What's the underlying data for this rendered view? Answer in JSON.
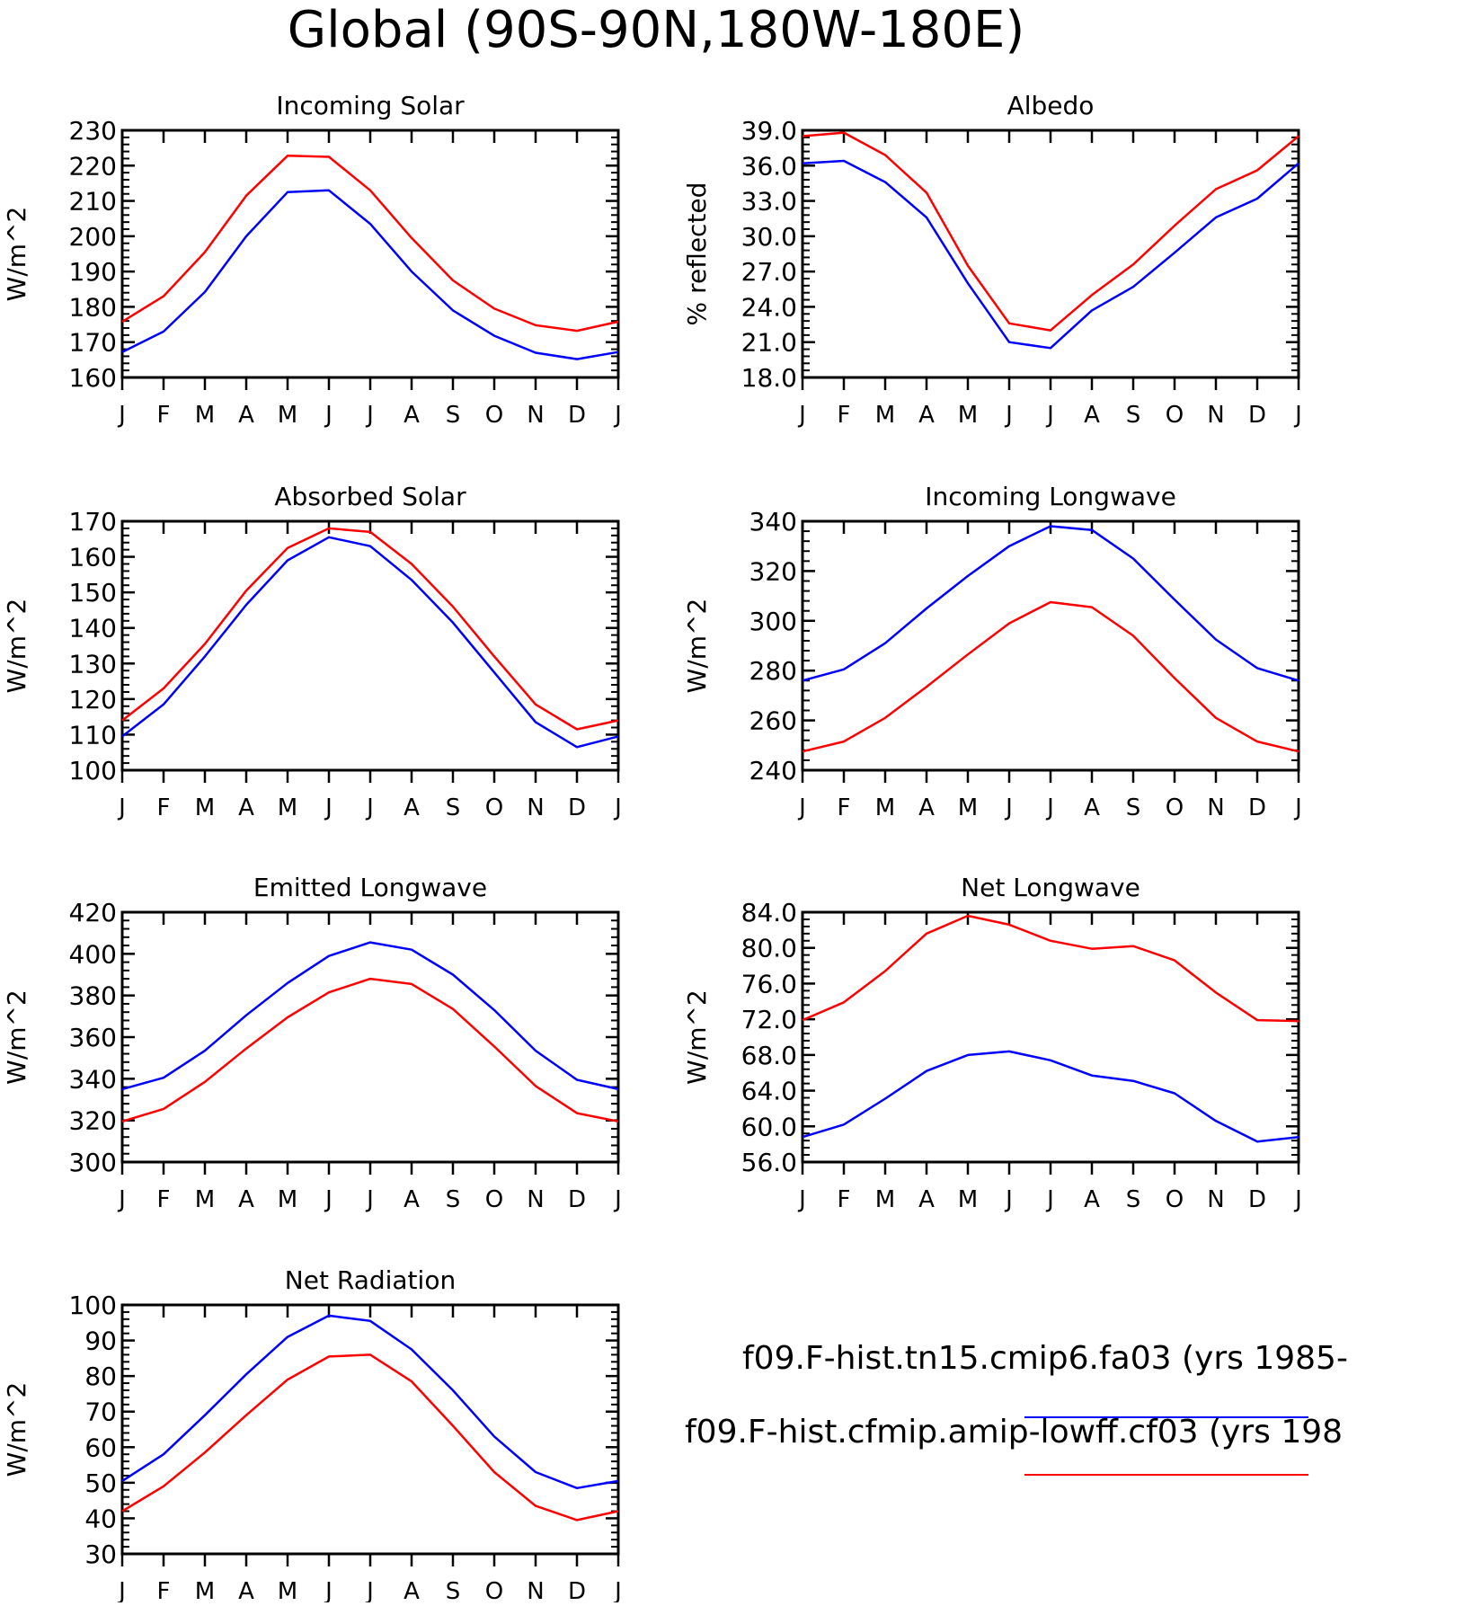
{
  "page_title": "Global (90S-90N,180W-180E)",
  "colors": {
    "series_blue": "#0000ff",
    "series_red": "#ff0000",
    "axis": "#000000"
  },
  "legend": [
    {
      "label": "f09.F-hist.tn15.cmip6.fa03 (yrs 1985-",
      "color": "#0000ff"
    },
    {
      "label": "f09.F-hist.cfmip.amip-lowff.cf03 (yrs 198",
      "color": "#ff0000"
    }
  ],
  "chart_data": [
    {
      "type": "line",
      "title": "Incoming Solar",
      "ylabel": "W/m^2",
      "categories": [
        "J",
        "F",
        "M",
        "A",
        "M",
        "J",
        "J",
        "A",
        "S",
        "O",
        "N",
        "D",
        "J"
      ],
      "ylim": [
        160,
        230
      ],
      "yticks": [
        "160",
        "170",
        "180",
        "190",
        "200",
        "210",
        "220",
        "230"
      ],
      "series": [
        {
          "color": "#ff0000",
          "values": [
            175.8,
            183.0,
            195.5,
            211.5,
            222.8,
            222.5,
            213.0,
            199.5,
            187.5,
            179.5,
            174.8,
            173.2,
            175.8
          ]
        },
        {
          "color": "#0000ff",
          "values": [
            167.2,
            173.0,
            184.2,
            200.0,
            212.5,
            213.0,
            203.5,
            190.0,
            179.0,
            171.8,
            167.0,
            165.2,
            167.2
          ]
        }
      ]
    },
    {
      "type": "line",
      "title": "Albedo",
      "ylabel": "% reflected",
      "categories": [
        "J",
        "F",
        "M",
        "A",
        "M",
        "J",
        "J",
        "A",
        "S",
        "O",
        "N",
        "D",
        "J"
      ],
      "ylim": [
        18.0,
        39.0
      ],
      "yticks": [
        "18.0",
        "21.0",
        "24.0",
        "27.0",
        "30.0",
        "33.0",
        "36.0",
        "39.0"
      ],
      "series": [
        {
          "color": "#ff0000",
          "values": [
            38.5,
            38.8,
            36.9,
            33.7,
            27.5,
            22.6,
            22.0,
            25.0,
            27.6,
            30.9,
            34.0,
            35.6,
            38.5
          ]
        },
        {
          "color": "#0000ff",
          "values": [
            36.2,
            36.4,
            34.6,
            31.6,
            26.0,
            21.0,
            20.5,
            23.7,
            25.7,
            28.6,
            31.6,
            33.2,
            36.2
          ]
        }
      ]
    },
    {
      "type": "line",
      "title": "Absorbed Solar",
      "ylabel": "W/m^2",
      "categories": [
        "J",
        "F",
        "M",
        "A",
        "M",
        "J",
        "J",
        "A",
        "S",
        "O",
        "N",
        "D",
        "J"
      ],
      "ylim": [
        100,
        170
      ],
      "yticks": [
        "100",
        "110",
        "120",
        "130",
        "140",
        "150",
        "160",
        "170"
      ],
      "series": [
        {
          "color": "#ff0000",
          "values": [
            114.0,
            123.0,
            135.5,
            150.5,
            162.5,
            168.0,
            167.0,
            158.0,
            146.0,
            132.0,
            118.5,
            111.5,
            114.0
          ]
        },
        {
          "color": "#0000ff",
          "values": [
            109.5,
            118.5,
            132.0,
            146.5,
            159.0,
            165.5,
            163.0,
            153.5,
            141.5,
            127.5,
            113.5,
            106.5,
            109.5
          ]
        }
      ]
    },
    {
      "type": "line",
      "title": "Incoming Longwave",
      "ylabel": "W/m^2",
      "categories": [
        "J",
        "F",
        "M",
        "A",
        "M",
        "J",
        "J",
        "A",
        "S",
        "O",
        "N",
        "D",
        "J"
      ],
      "ylim": [
        240,
        340
      ],
      "yticks": [
        "240",
        "260",
        "280",
        "300",
        "320",
        "340"
      ],
      "series": [
        {
          "color": "#0000ff",
          "values": [
            276.0,
            280.5,
            291.0,
            305.0,
            318.0,
            330.0,
            338.0,
            336.5,
            325.0,
            308.5,
            292.5,
            281.0,
            276.0
          ]
        },
        {
          "color": "#ff0000",
          "values": [
            247.5,
            251.5,
            261.0,
            273.5,
            286.5,
            299.0,
            307.5,
            305.5,
            294.0,
            277.0,
            261.0,
            251.5,
            247.5
          ]
        }
      ]
    },
    {
      "type": "line",
      "title": "Emitted Longwave",
      "ylabel": "W/m^2",
      "categories": [
        "J",
        "F",
        "M",
        "A",
        "M",
        "J",
        "J",
        "A",
        "S",
        "O",
        "N",
        "D",
        "J"
      ],
      "ylim": [
        300,
        420
      ],
      "yticks": [
        "300",
        "320",
        "340",
        "360",
        "380",
        "400",
        "420"
      ],
      "series": [
        {
          "color": "#0000ff",
          "values": [
            335.0,
            340.5,
            353.5,
            370.5,
            386.0,
            399.0,
            405.5,
            402.0,
            390.0,
            373.0,
            353.5,
            339.5,
            335.0
          ]
        },
        {
          "color": "#ff0000",
          "values": [
            319.5,
            325.5,
            338.5,
            354.5,
            369.5,
            381.5,
            388.0,
            385.5,
            373.5,
            355.5,
            336.5,
            323.5,
            319.5
          ]
        }
      ]
    },
    {
      "type": "line",
      "title": "Net Longwave",
      "ylabel": "W/m^2",
      "categories": [
        "J",
        "F",
        "M",
        "A",
        "M",
        "J",
        "J",
        "A",
        "S",
        "O",
        "N",
        "D",
        "J"
      ],
      "ylim": [
        56.0,
        84.0
      ],
      "yticks": [
        "56.0",
        "60.0",
        "64.0",
        "68.0",
        "72.0",
        "76.0",
        "80.0",
        "84.0"
      ],
      "series": [
        {
          "color": "#ff0000",
          "values": [
            71.9,
            73.9,
            77.4,
            81.6,
            83.6,
            82.6,
            80.8,
            79.9,
            80.2,
            78.6,
            75.0,
            71.9,
            71.8
          ]
        },
        {
          "color": "#0000ff",
          "values": [
            58.8,
            60.2,
            63.1,
            66.2,
            68.0,
            68.4,
            67.4,
            65.7,
            65.1,
            63.7,
            60.6,
            58.3,
            58.8
          ]
        }
      ]
    },
    {
      "type": "line",
      "title": "Net Radiation",
      "ylabel": "W/m^2",
      "categories": [
        "J",
        "F",
        "M",
        "A",
        "M",
        "J",
        "J",
        "A",
        "S",
        "O",
        "N",
        "D",
        "J"
      ],
      "ylim": [
        30,
        100
      ],
      "yticks": [
        "30",
        "40",
        "50",
        "60",
        "70",
        "80",
        "90",
        "100"
      ],
      "series": [
        {
          "color": "#0000ff",
          "values": [
            50.5,
            58.0,
            69.0,
            80.5,
            91.0,
            97.0,
            95.5,
            87.5,
            76.0,
            63.0,
            53.0,
            48.5,
            50.5
          ]
        },
        {
          "color": "#ff0000",
          "values": [
            42.0,
            49.0,
            58.5,
            69.0,
            79.0,
            85.5,
            86.0,
            78.5,
            66.0,
            53.0,
            43.5,
            39.5,
            42.0
          ]
        }
      ]
    }
  ]
}
